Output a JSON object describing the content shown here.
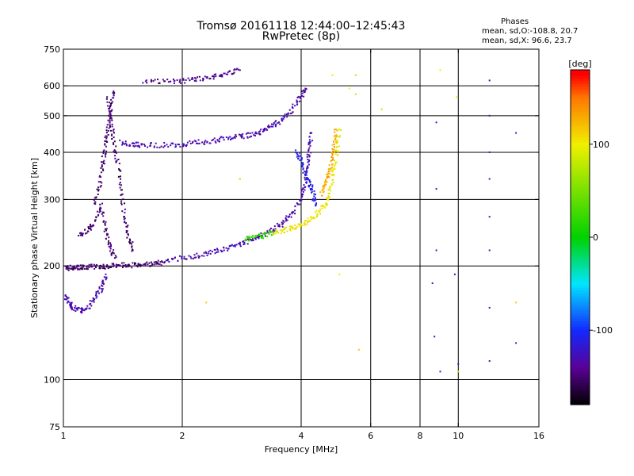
{
  "header": {
    "title_line1": "Tromsø 20161118 12:44:00–12:45:43",
    "title_line2": "RwPretec (8p)"
  },
  "stats": {
    "title": "Phases",
    "line_o": "mean, sd,O:-108.8, 20.7",
    "line_x": "mean, sd,X:  96.6, 23.7"
  },
  "chart_data": {
    "type": "scatter",
    "title": "Tromsø 20161118 12:44:00–12:45:43",
    "subtitle": "RwPretec (8p)",
    "xlabel": "Frequency [MHz]",
    "ylabel": "Stationary phase Virtual Height [km]",
    "xscale": "log",
    "yscale": "log",
    "xlim": [
      1,
      16
    ],
    "ylim": [
      75,
      750
    ],
    "x_ticks": [
      1,
      2,
      4,
      6,
      8,
      10,
      16
    ],
    "y_ticks": [
      75,
      100,
      200,
      300,
      400,
      500,
      600,
      750
    ],
    "x_grid": [
      2,
      4,
      6,
      8,
      10
    ],
    "y_grid": [
      100,
      200,
      300,
      400,
      500,
      600
    ],
    "grid": true,
    "colorbar": {
      "label": "[deg]",
      "ticks": [
        100,
        0,
        -100
      ],
      "range": [
        -180,
        180
      ],
      "colormap": "rainbow"
    },
    "series": [
      {
        "mode": "O",
        "phase": -150,
        "points": [
          [
            1.02,
            197
          ],
          [
            1.05,
            198
          ],
          [
            1.08,
            198
          ],
          [
            1.12,
            199
          ],
          [
            1.18,
            199
          ],
          [
            1.25,
            199
          ],
          [
            1.32,
            200
          ],
          [
            1.4,
            201
          ],
          [
            1.5,
            201
          ],
          [
            1.6,
            202
          ],
          [
            1.7,
            203
          ],
          [
            1.8,
            204
          ]
        ]
      },
      {
        "mode": "O",
        "phase": -130,
        "points": [
          [
            1.0,
            170
          ],
          [
            1.03,
            160
          ],
          [
            1.06,
            155
          ],
          [
            1.1,
            152
          ],
          [
            1.15,
            155
          ],
          [
            1.2,
            165
          ],
          [
            1.25,
            175
          ],
          [
            1.28,
            190
          ]
        ]
      },
      {
        "mode": "O",
        "phase": -150,
        "points": [
          [
            1.2,
            290
          ],
          [
            1.24,
            330
          ],
          [
            1.26,
            380
          ],
          [
            1.28,
            420
          ],
          [
            1.3,
            470
          ],
          [
            1.32,
            520
          ],
          [
            1.34,
            580
          ]
        ]
      },
      {
        "mode": "O",
        "phase": -150,
        "points": [
          [
            1.3,
            560
          ],
          [
            1.32,
            480
          ],
          [
            1.34,
            430
          ],
          [
            1.37,
            380
          ],
          [
            1.4,
            320
          ],
          [
            1.43,
            270
          ],
          [
            1.46,
            240
          ],
          [
            1.5,
            220
          ]
        ]
      },
      {
        "mode": "O",
        "phase": -150,
        "points": [
          [
            1.1,
            240
          ],
          [
            1.15,
            250
          ],
          [
            1.2,
            260
          ],
          [
            1.25,
            290
          ],
          [
            1.28,
            250
          ],
          [
            1.31,
            225
          ],
          [
            1.35,
            210
          ]
        ]
      },
      {
        "mode": "O",
        "phase": -130,
        "points": [
          [
            1.4,
            425
          ],
          [
            1.5,
            420
          ],
          [
            1.6,
            418
          ],
          [
            1.8,
            418
          ],
          [
            2.0,
            420
          ],
          [
            2.2,
            425
          ],
          [
            2.4,
            430
          ],
          [
            2.6,
            435
          ],
          [
            2.8,
            440
          ],
          [
            3.0,
            445
          ],
          [
            3.2,
            455
          ],
          [
            3.4,
            470
          ],
          [
            3.6,
            490
          ],
          [
            3.8,
            520
          ],
          [
            4.0,
            560
          ],
          [
            4.1,
            590
          ]
        ]
      },
      {
        "mode": "O",
        "phase": -140,
        "points": [
          [
            1.6,
            615
          ],
          [
            1.8,
            615
          ],
          [
            2.0,
            618
          ],
          [
            2.2,
            625
          ],
          [
            2.4,
            635
          ],
          [
            2.6,
            648
          ],
          [
            2.8,
            660
          ]
        ]
      },
      {
        "mode": "O",
        "phase": -130,
        "points": [
          [
            1.8,
            205
          ],
          [
            2.0,
            210
          ],
          [
            2.2,
            213
          ],
          [
            2.4,
            218
          ],
          [
            2.6,
            222
          ],
          [
            2.8,
            228
          ],
          [
            3.0,
            235
          ],
          [
            3.2,
            242
          ],
          [
            3.4,
            250
          ],
          [
            3.6,
            260
          ],
          [
            3.8,
            275
          ],
          [
            4.0,
            300
          ],
          [
            4.1,
            330
          ],
          [
            4.15,
            370
          ],
          [
            4.2,
            410
          ],
          [
            4.25,
            450
          ]
        ]
      },
      {
        "mode": "O",
        "phase": -110,
        "points": [
          [
            3.9,
            400
          ],
          [
            4.0,
            380
          ],
          [
            4.1,
            350
          ],
          [
            4.2,
            330
          ],
          [
            4.3,
            310
          ],
          [
            4.35,
            290
          ]
        ]
      },
      {
        "mode": "X",
        "phase": 100,
        "points": [
          [
            3.4,
            245
          ],
          [
            3.6,
            248
          ],
          [
            3.8,
            252
          ],
          [
            4.0,
            257
          ],
          [
            4.2,
            265
          ],
          [
            4.4,
            275
          ],
          [
            4.6,
            290
          ],
          [
            4.75,
            320
          ],
          [
            4.85,
            360
          ],
          [
            4.95,
            410
          ],
          [
            5.0,
            460
          ]
        ]
      },
      {
        "mode": "X",
        "phase": 20,
        "points": [
          [
            2.9,
            235
          ],
          [
            3.0,
            240
          ],
          [
            3.2,
            240
          ],
          [
            3.4,
            245
          ]
        ]
      },
      {
        "mode": "X",
        "phase": 130,
        "points": [
          [
            4.5,
            310
          ],
          [
            4.6,
            330
          ],
          [
            4.7,
            350
          ],
          [
            4.8,
            380
          ],
          [
            4.85,
            420
          ],
          [
            4.9,
            460
          ]
        ]
      },
      {
        "mode": "scatter",
        "phase": -120,
        "points": [
          [
            8.8,
            480
          ],
          [
            8.8,
            320
          ],
          [
            8.8,
            220
          ],
          [
            8.6,
            180
          ],
          [
            8.7,
            130
          ],
          [
            9.0,
            105
          ],
          [
            9.8,
            190
          ],
          [
            10.0,
            110
          ],
          [
            12.0,
            620
          ],
          [
            12.0,
            500
          ],
          [
            12.0,
            400
          ],
          [
            12.0,
            340
          ],
          [
            12.0,
            270
          ],
          [
            12.0,
            220
          ],
          [
            12.0,
            155
          ],
          [
            12.0,
            112
          ],
          [
            14.0,
            450
          ],
          [
            14.0,
            125
          ]
        ]
      },
      {
        "mode": "scatter",
        "phase": 110,
        "points": [
          [
            4.8,
            640
          ],
          [
            5.3,
            590
          ],
          [
            5.5,
            640
          ],
          [
            5.5,
            570
          ],
          [
            5.0,
            190
          ],
          [
            5.6,
            120
          ],
          [
            6.4,
            520
          ],
          [
            9.0,
            660
          ],
          [
            9.9,
            560
          ],
          [
            10.0,
            105
          ],
          [
            14.0,
            160
          ],
          [
            2.3,
            160
          ],
          [
            2.8,
            340
          ]
        ]
      }
    ]
  }
}
